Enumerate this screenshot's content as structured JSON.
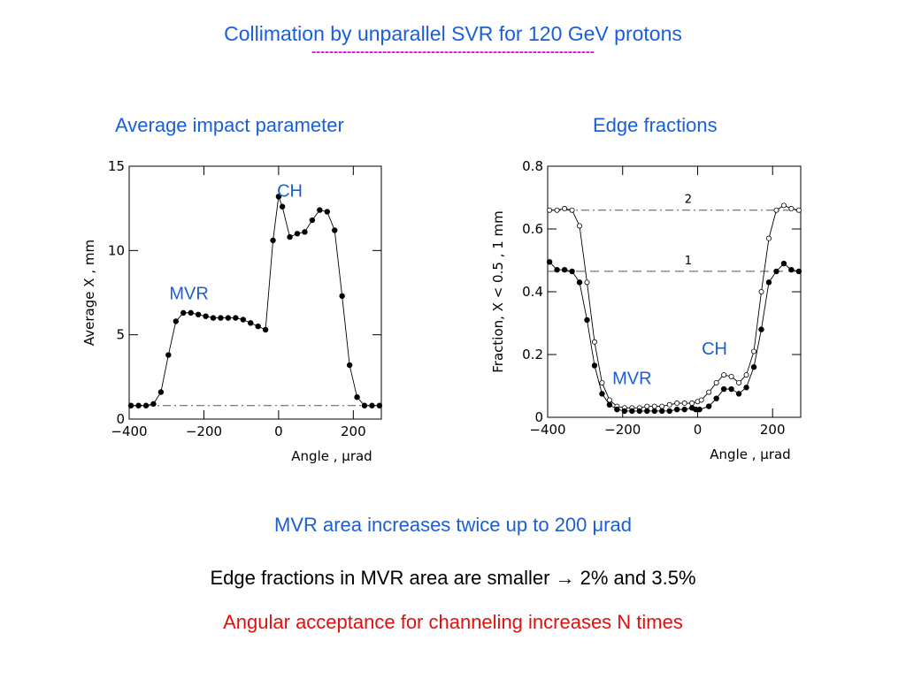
{
  "slide": {
    "title": "Collimation by unparallel SVR for 120 GeV protons",
    "title_rule": "----------------------------------------------------------------",
    "left_panel_title": "Average impact parameter",
    "right_panel_title": "Edge fractions",
    "note1": "MVR area increases twice up to 200 μrad",
    "note2": "Edge fractions in MVR area are smaller → 2% and 3.5%",
    "note3": "Angular acceptance for channeling increases N times"
  },
  "colors": {
    "blue": "#1a5fd6",
    "magenta": "#e000e0",
    "red": "#e01010"
  },
  "chart_data": [
    {
      "type": "line",
      "title": "",
      "xlabel": "Angle , μrad",
      "ylabel": "Average X , mm",
      "xlim": [
        -400,
        275
      ],
      "ylim": [
        0,
        15
      ],
      "x_ticks": [
        -400,
        -200,
        0,
        200
      ],
      "x_tick_labels": [
        "−400",
        "−200",
        "0",
        "200"
      ],
      "y_ticks": [
        0,
        5,
        10,
        15
      ],
      "y_tick_labels": [
        "0",
        "5",
        "10",
        "15"
      ],
      "reference_line": {
        "y": 0.8,
        "style": "dash-dot"
      },
      "annotations": [
        {
          "text": "CH",
          "x": 30,
          "y": 13.2
        },
        {
          "text": "MVR",
          "x": -240,
          "y": 7.1
        }
      ],
      "series": [
        {
          "marker": "filled",
          "x": [
            -395,
            -375,
            -355,
            -335,
            -315,
            -295,
            -275,
            -255,
            -235,
            -215,
            -195,
            -175,
            -155,
            -135,
            -115,
            -95,
            -75,
            -55,
            -35,
            -15,
            0,
            10,
            30,
            50,
            70,
            90,
            110,
            130,
            150,
            170,
            190,
            210,
            230,
            250,
            270
          ],
          "y": [
            0.8,
            0.8,
            0.8,
            0.9,
            1.6,
            3.8,
            5.8,
            6.3,
            6.3,
            6.2,
            6.1,
            6.0,
            6.0,
            6.0,
            6.0,
            5.9,
            5.7,
            5.5,
            5.3,
            10.6,
            13.2,
            12.6,
            10.8,
            11.0,
            11.1,
            11.8,
            12.4,
            12.3,
            11.2,
            7.3,
            3.2,
            1.3,
            0.8,
            0.8,
            0.8
          ]
        }
      ]
    },
    {
      "type": "line",
      "title": "",
      "xlabel": "Angle , μrad",
      "ylabel": "Fraction, X < 0.5 , 1 mm",
      "xlim": [
        -400,
        275
      ],
      "ylim": [
        0,
        0.8
      ],
      "x_ticks": [
        -400,
        -200,
        0,
        200
      ],
      "x_tick_labels": [
        "−400",
        "−200",
        "0",
        "200"
      ],
      "y_ticks": [
        0,
        0.2,
        0.4,
        0.6,
        0.8
      ],
      "y_tick_labels": [
        "0",
        "0.2",
        "0.4",
        "0.6",
        "0.8"
      ],
      "reference_lines": [
        {
          "y": 0.66,
          "style": "dash-dot",
          "label": "2"
        },
        {
          "y": 0.465,
          "style": "dashed",
          "label": "1"
        }
      ],
      "annotations": [
        {
          "text": "CH",
          "x": 45,
          "y": 0.2
        },
        {
          "text": "MVR",
          "x": -175,
          "y": 0.105
        }
      ],
      "series": [
        {
          "name": "2",
          "marker": "open",
          "x": [
            -395,
            -375,
            -355,
            -335,
            -315,
            -295,
            -275,
            -255,
            -235,
            -215,
            -195,
            -175,
            -155,
            -135,
            -115,
            -95,
            -75,
            -55,
            -35,
            -15,
            0,
            10,
            30,
            50,
            70,
            90,
            110,
            130,
            150,
            170,
            190,
            210,
            230,
            250,
            270
          ],
          "y": [
            0.66,
            0.66,
            0.665,
            0.66,
            0.61,
            0.43,
            0.24,
            0.11,
            0.055,
            0.035,
            0.03,
            0.03,
            0.03,
            0.035,
            0.035,
            0.035,
            0.04,
            0.045,
            0.045,
            0.045,
            0.05,
            0.055,
            0.08,
            0.11,
            0.135,
            0.13,
            0.11,
            0.135,
            0.21,
            0.4,
            0.57,
            0.66,
            0.675,
            0.665,
            0.66
          ]
        },
        {
          "name": "1",
          "marker": "filled",
          "x": [
            -395,
            -375,
            -355,
            -335,
            -315,
            -295,
            -275,
            -255,
            -235,
            -215,
            -195,
            -175,
            -155,
            -135,
            -115,
            -95,
            -75,
            -55,
            -35,
            -15,
            -5,
            5,
            30,
            50,
            70,
            90,
            110,
            130,
            150,
            170,
            190,
            210,
            230,
            250,
            270
          ],
          "y": [
            0.495,
            0.47,
            0.47,
            0.465,
            0.43,
            0.31,
            0.165,
            0.075,
            0.04,
            0.025,
            0.02,
            0.02,
            0.02,
            0.02,
            0.02,
            0.02,
            0.02,
            0.025,
            0.025,
            0.03,
            0.025,
            0.025,
            0.035,
            0.06,
            0.09,
            0.09,
            0.075,
            0.095,
            0.16,
            0.28,
            0.43,
            0.465,
            0.49,
            0.47,
            0.465
          ]
        }
      ]
    }
  ]
}
